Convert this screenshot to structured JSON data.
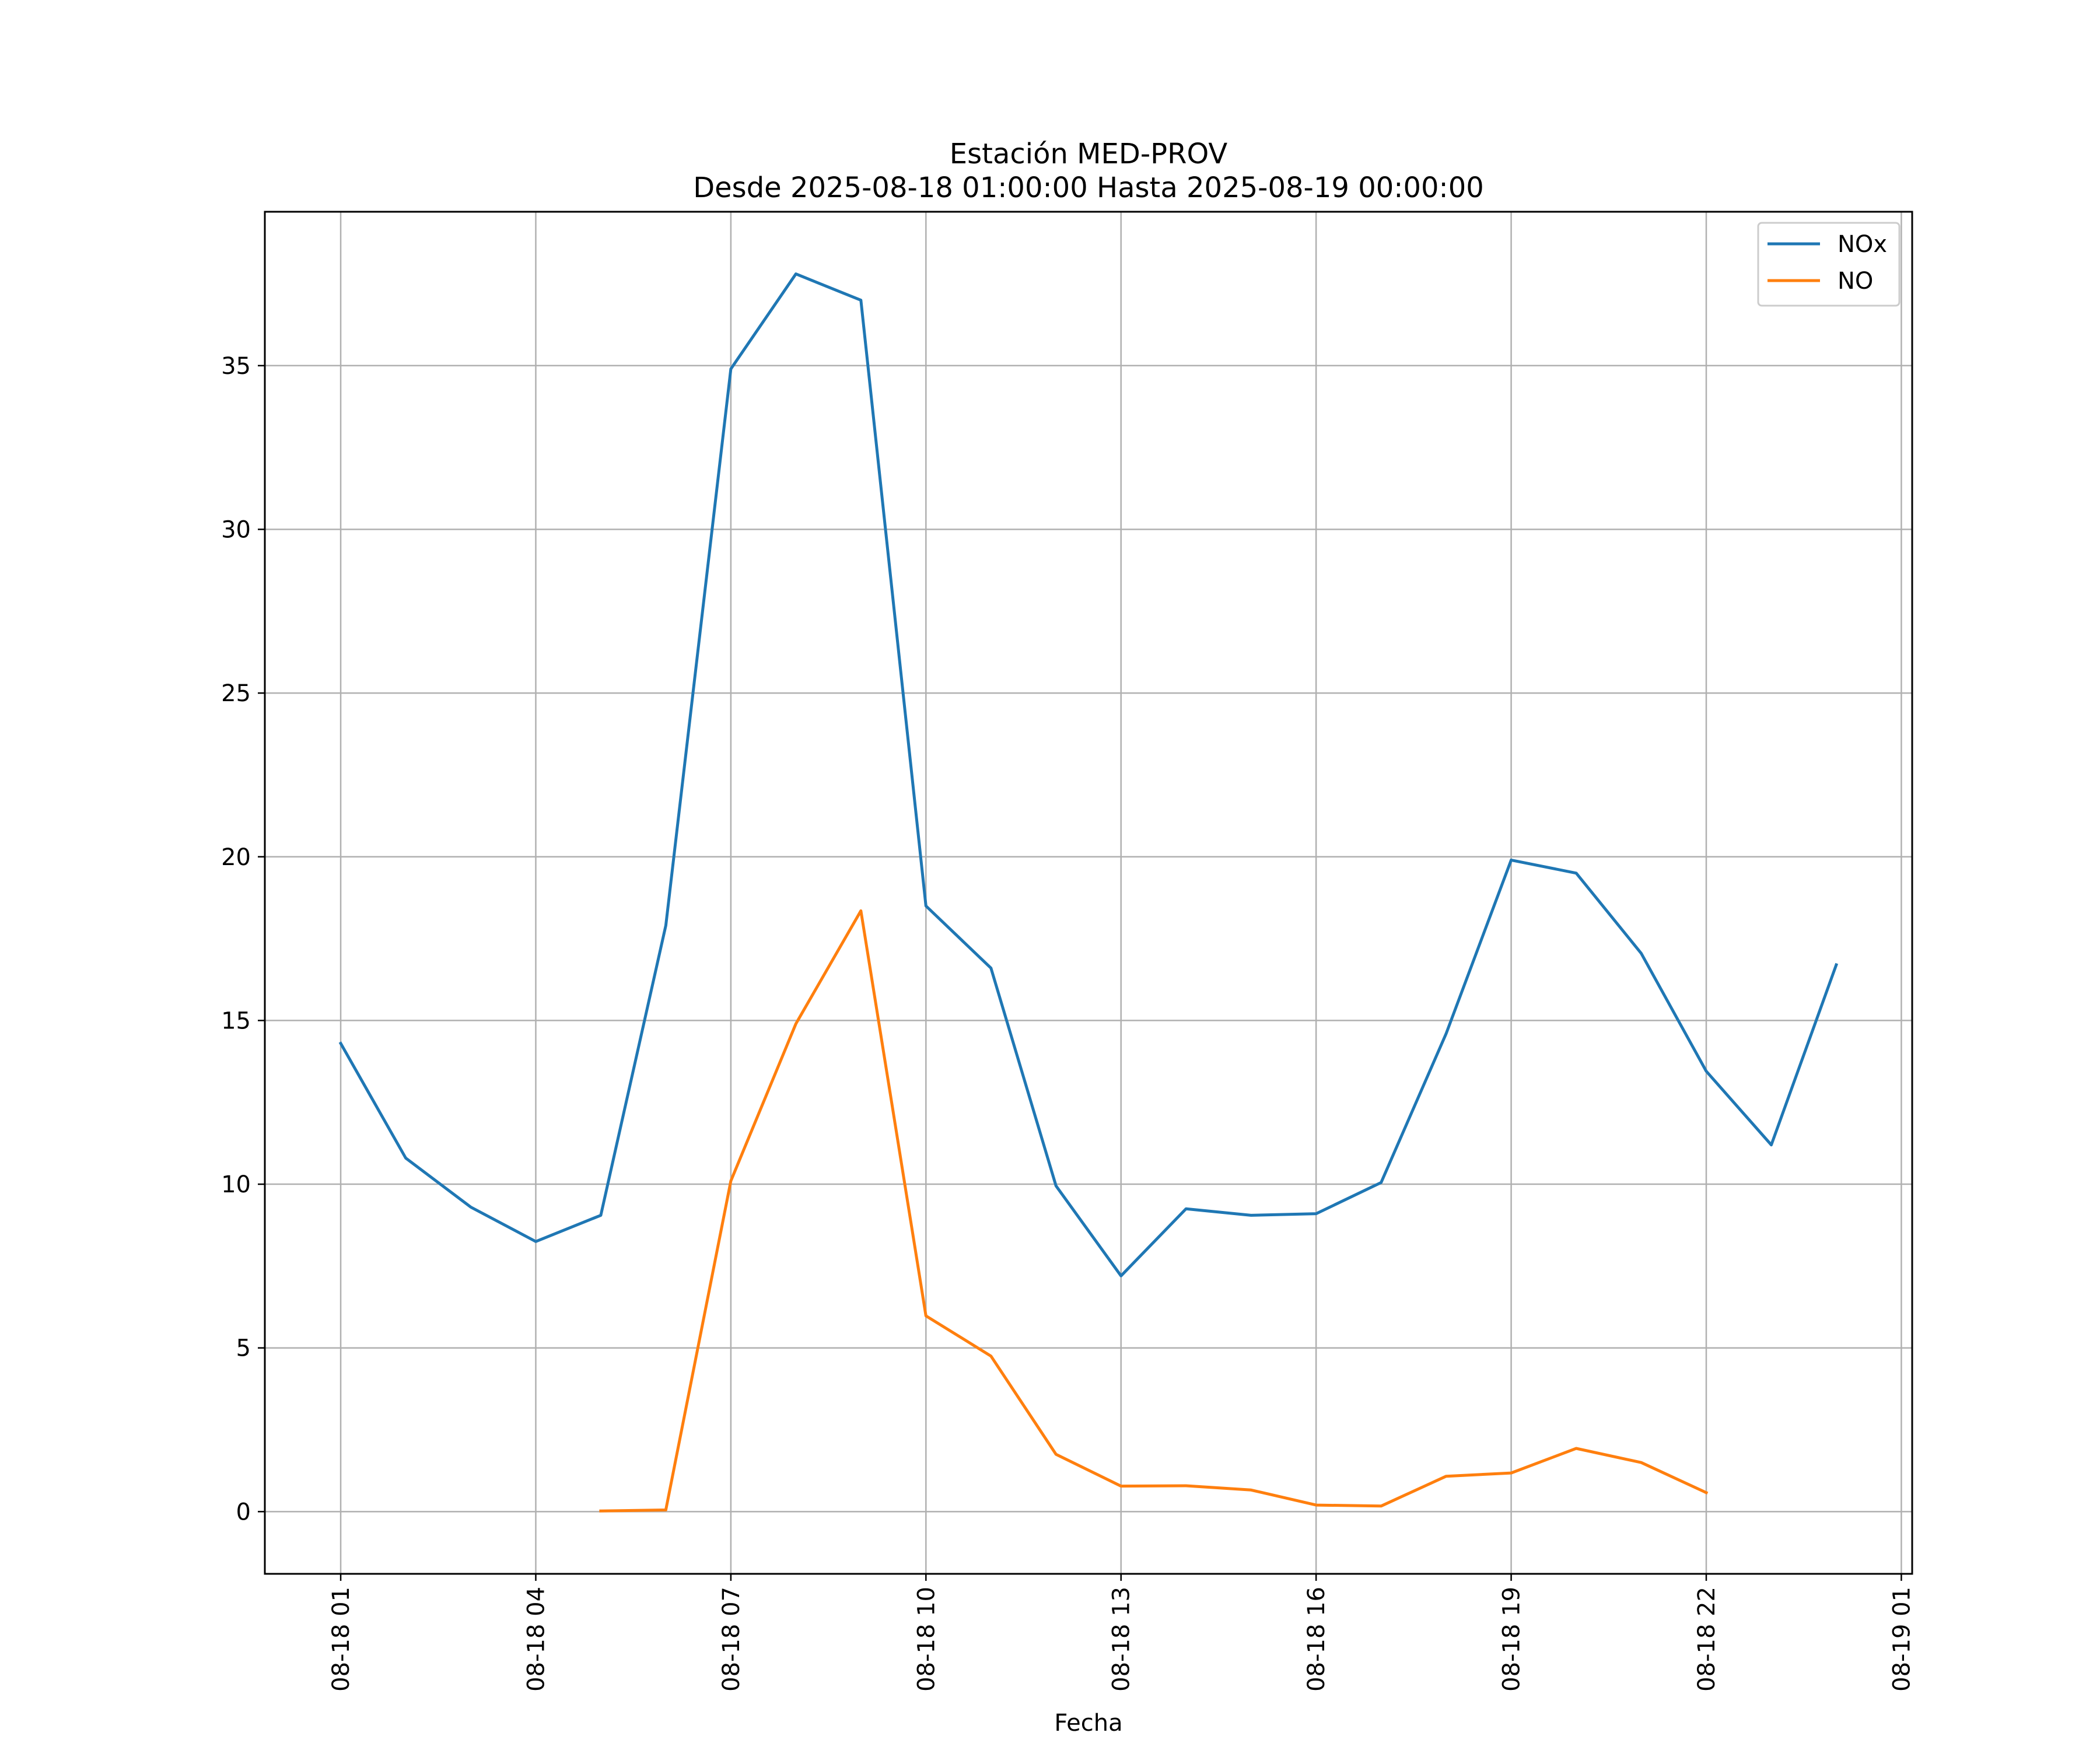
{
  "chart_data": {
    "type": "line",
    "title": "Estación MED-PROV",
    "subtitle": "Desde 2025-08-18 01:00:00 Hasta 2025-08-19 00:00:00",
    "xlabel": "Fecha",
    "ylabel": "",
    "x_tick_labels": [
      "08-18 01",
      "08-18 04",
      "08-18 07",
      "08-18 10",
      "08-18 13",
      "08-18 16",
      "08-18 19",
      "08-18 22",
      "08-19 01"
    ],
    "y_tick_labels": [
      "0",
      "5",
      "10",
      "15",
      "20",
      "25",
      "30",
      "35"
    ],
    "xlim": [
      "2025-08-17 23:50",
      "2025-08-19 01:10"
    ],
    "ylim": [
      -1.9,
      39.7
    ],
    "grid": true,
    "legend_position": "top-right",
    "series": [
      {
        "name": "NOx",
        "color": "#1f77b4",
        "x": [
          "2025-08-18 01:00",
          "2025-08-18 02:00",
          "2025-08-18 03:00",
          "2025-08-18 04:00",
          "2025-08-18 05:00",
          "2025-08-18 06:00",
          "2025-08-18 07:00",
          "2025-08-18 08:00",
          "2025-08-18 09:00",
          "2025-08-18 10:00",
          "2025-08-18 11:00",
          "2025-08-18 12:00",
          "2025-08-18 13:00",
          "2025-08-18 14:00",
          "2025-08-18 15:00",
          "2025-08-18 16:00",
          "2025-08-18 17:00",
          "2025-08-18 18:00",
          "2025-08-18 19:00",
          "2025-08-18 20:00",
          "2025-08-18 21:00",
          "2025-08-18 22:00",
          "2025-08-18 23:00",
          "2025-08-19 00:00"
        ],
        "values": [
          14.3,
          10.8,
          9.3,
          8.25,
          9.05,
          17.9,
          34.9,
          37.8,
          37.0,
          18.5,
          16.6,
          9.95,
          7.2,
          9.25,
          9.05,
          9.1,
          10.05,
          14.6,
          19.9,
          19.5,
          17.05,
          13.45,
          11.2,
          16.7
        ]
      },
      {
        "name": "NO",
        "color": "#ff7f0e",
        "x": [
          "2025-08-18 05:00",
          "2025-08-18 06:00",
          "2025-08-18 07:00",
          "2025-08-18 08:00",
          "2025-08-18 09:00",
          "2025-08-18 10:00",
          "2025-08-18 11:00",
          "2025-08-18 12:00",
          "2025-08-18 13:00",
          "2025-08-18 14:00",
          "2025-08-18 15:00",
          "2025-08-18 16:00",
          "2025-08-18 17:00",
          "2025-08-18 18:00",
          "2025-08-18 19:00",
          "2025-08-18 20:00",
          "2025-08-18 21:00",
          "2025-08-18 22:00"
        ],
        "values": [
          0.02,
          0.05,
          10.1,
          14.9,
          18.35,
          5.98,
          4.75,
          1.75,
          0.78,
          0.79,
          0.66,
          0.2,
          0.17,
          1.08,
          1.18,
          1.93,
          1.5,
          0.58
        ]
      }
    ]
  }
}
